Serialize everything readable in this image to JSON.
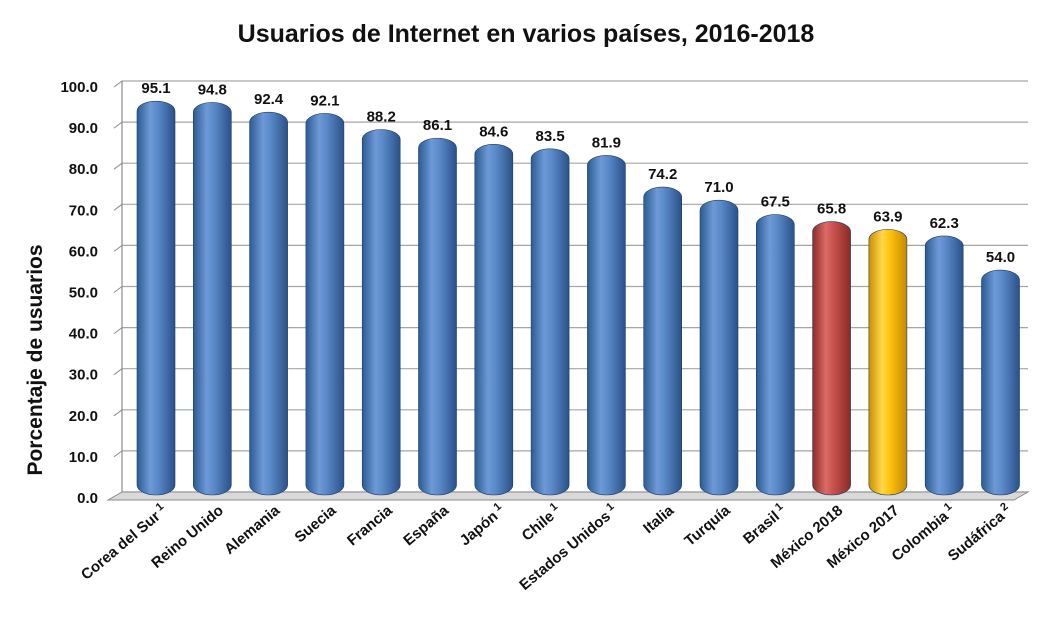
{
  "chart_data": {
    "type": "bar",
    "title": "Usuarios de Internet en varios países, 2016-2018",
    "ylabel": "Porcentaje de usuarios",
    "xlabel": "",
    "ylim": [
      0,
      100
    ],
    "yticks": [
      "0.0",
      "10.0",
      "20.0",
      "30.0",
      "40.0",
      "50.0",
      "60.0",
      "70.0",
      "80.0",
      "90.0",
      "100.0"
    ],
    "grid": true,
    "bars": [
      {
        "category": "Corea del Sur",
        "note": "1",
        "value": 95.1,
        "label": "95.1",
        "color": "#4f81bd"
      },
      {
        "category": "Reino Unido",
        "note": "",
        "value": 94.8,
        "label": "94.8",
        "color": "#4f81bd"
      },
      {
        "category": "Alemania",
        "note": "",
        "value": 92.4,
        "label": "92.4",
        "color": "#4f81bd"
      },
      {
        "category": "Suecia",
        "note": "",
        "value": 92.1,
        "label": "92.1",
        "color": "#4f81bd"
      },
      {
        "category": "Francia",
        "note": "",
        "value": 88.2,
        "label": "88.2",
        "color": "#4f81bd"
      },
      {
        "category": "España",
        "note": "",
        "value": 86.1,
        "label": "86.1",
        "color": "#4f81bd"
      },
      {
        "category": "Japón",
        "note": "1",
        "value": 84.6,
        "label": "84.6",
        "color": "#4f81bd"
      },
      {
        "category": "Chile",
        "note": "1",
        "value": 83.5,
        "label": "83.5",
        "color": "#4f81bd"
      },
      {
        "category": "Estados Unidos",
        "note": "1",
        "value": 81.9,
        "label": "81.9",
        "color": "#4f81bd"
      },
      {
        "category": "Italia",
        "note": "",
        "value": 74.2,
        "label": "74.2",
        "color": "#4f81bd"
      },
      {
        "category": "Turquía",
        "note": "",
        "value": 71.0,
        "label": "71.0",
        "color": "#4f81bd"
      },
      {
        "category": "Brasil",
        "note": "1",
        "value": 67.5,
        "label": "67.5",
        "color": "#4f81bd"
      },
      {
        "category": "México 2018",
        "note": "",
        "value": 65.8,
        "label": "65.8",
        "color": "#c0504d"
      },
      {
        "category": "México 2017",
        "note": "",
        "value": 63.9,
        "label": "63.9",
        "color": "#ffc000"
      },
      {
        "category": "Colombia",
        "note": "1",
        "value": 62.3,
        "label": "62.3",
        "color": "#4f81bd"
      },
      {
        "category": "Sudáfrica",
        "note": "2",
        "value": 54.0,
        "label": "54.0",
        "color": "#4f81bd"
      }
    ]
  }
}
